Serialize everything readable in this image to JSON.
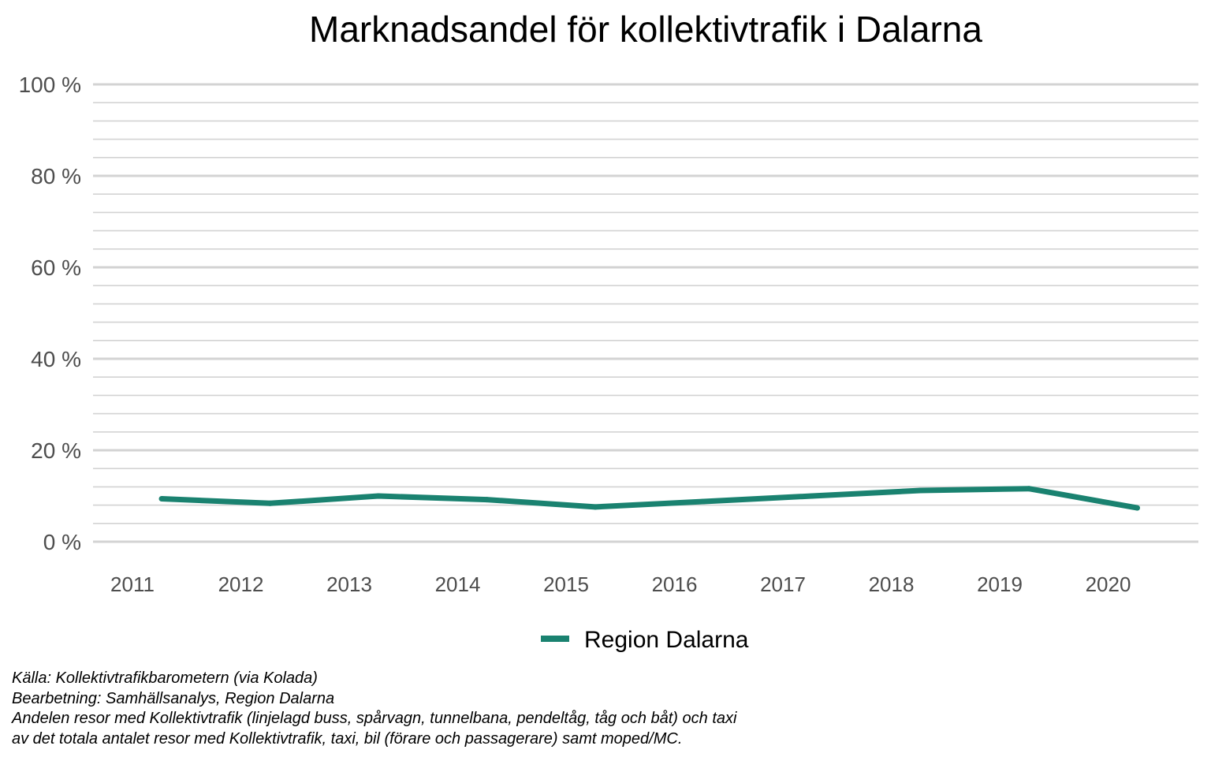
{
  "chart_data": {
    "type": "line",
    "title": "Marknadsandel för kollektivtrafik i Dalarna",
    "xlabel": "",
    "ylabel": "",
    "categories": [
      "2011",
      "2012",
      "2013",
      "2014",
      "2015",
      "2016",
      "2017",
      "2018",
      "2019",
      "2020"
    ],
    "series": [
      {
        "name": "Region Dalarna",
        "color": "#1a8270",
        "values": [
          9.4,
          8.4,
          10.0,
          9.2,
          7.6,
          8.8,
          10.0,
          11.2,
          11.6,
          7.4
        ]
      }
    ],
    "ylim": [
      0,
      100
    ],
    "yticks": [
      0,
      20,
      40,
      60,
      80,
      100
    ],
    "ytick_labels": [
      "0 %",
      "20 %",
      "40 %",
      "60 %",
      "80 %",
      "100 %"
    ],
    "minor_grid_step": 4,
    "grid": true,
    "gridline_color": "#d3d3d3",
    "legend_position": "bottom"
  },
  "caption": {
    "lines": [
      "Källa: Kollektivtrafikbarometern (via Kolada)",
      "Bearbetning: Samhällsanalys, Region Dalarna",
      "Andelen resor med Kollektivtrafik (linjelagd buss, spårvagn, tunnelbana, pendeltåg, tåg och båt) och taxi",
      "av det totala antalet resor med Kollektivtrafik, taxi, bil (förare och passagerare) samt moped/MC."
    ]
  }
}
